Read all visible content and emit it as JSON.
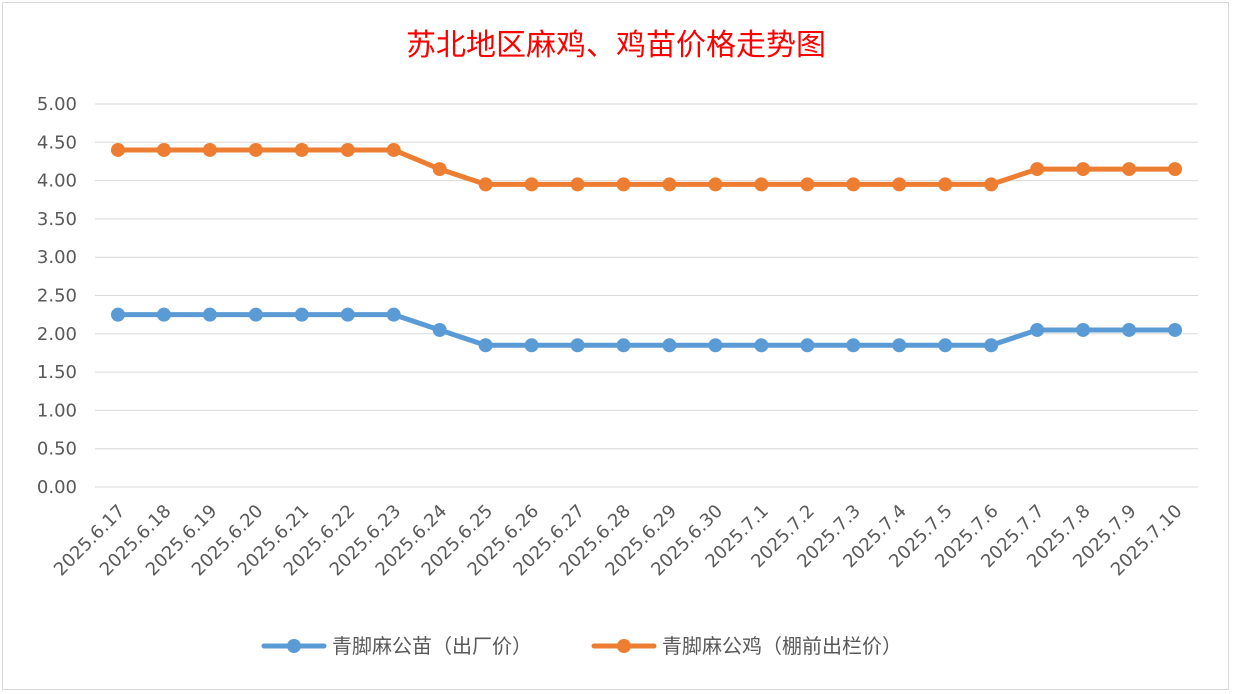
{
  "chart_data": {
    "type": "line",
    "title": "苏北地区麻鸡、鸡苗价格走势图",
    "xlabel": "",
    "ylabel": "",
    "ylim": [
      0,
      5
    ],
    "yticks": [
      "0.00",
      "0.50",
      "1.00",
      "1.50",
      "2.00",
      "2.50",
      "3.00",
      "3.50",
      "4.00",
      "4.50",
      "5.00"
    ],
    "grid": true,
    "legend_position": "bottom",
    "categories": [
      "2025.6.17",
      "2025.6.18",
      "2025.6.19",
      "2025.6.20",
      "2025.6.21",
      "2025.6.22",
      "2025.6.23",
      "2025.6.24",
      "2025.6.25",
      "2025.6.26",
      "2025.6.27",
      "2025.6.28",
      "2025.6.29",
      "2025.6.30",
      "2025.7.1",
      "2025.7.2",
      "2025.7.3",
      "2025.7.4",
      "2025.7.5",
      "2025.7.6",
      "2025.7.7",
      "2025.7.8",
      "2025.7.9",
      "2025.7.10"
    ],
    "series": [
      {
        "name": "青脚麻公苗（出厂价）",
        "color": "#5b9bd5",
        "values": [
          2.25,
          2.25,
          2.25,
          2.25,
          2.25,
          2.25,
          2.25,
          2.05,
          1.85,
          1.85,
          1.85,
          1.85,
          1.85,
          1.85,
          1.85,
          1.85,
          1.85,
          1.85,
          1.85,
          1.85,
          2.05,
          2.05,
          2.05,
          2.05
        ]
      },
      {
        "name": "青脚麻公鸡（棚前出栏价）",
        "color": "#ed7d31",
        "values": [
          4.4,
          4.4,
          4.4,
          4.4,
          4.4,
          4.4,
          4.4,
          4.15,
          3.95,
          3.95,
          3.95,
          3.95,
          3.95,
          3.95,
          3.95,
          3.95,
          3.95,
          3.95,
          3.95,
          3.95,
          4.15,
          4.15,
          4.15,
          4.15
        ]
      }
    ]
  }
}
